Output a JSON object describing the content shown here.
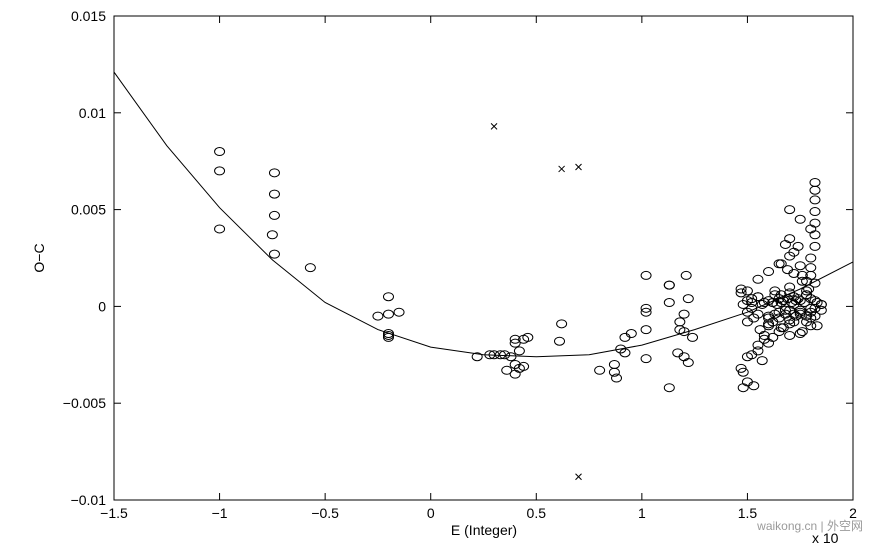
{
  "chart_data": {
    "type": "scatter",
    "title": "",
    "xlabel": "E (Integer)",
    "ylabel": "O−C",
    "x_exponent_label": "x 10",
    "xlim": [
      -1.5,
      2
    ],
    "ylim": [
      -0.01,
      0.015
    ],
    "x_ticks": [
      "−1.5",
      "−1",
      "−0.5",
      "0",
      "0.5",
      "1",
      "1.5",
      "2"
    ],
    "y_ticks": [
      "−0.01",
      "−0.005",
      "0",
      "0.005",
      "0.01",
      "0.015"
    ],
    "grid": false,
    "series": [
      {
        "marker": "circle",
        "x": [
          -1.0,
          -1.0,
          -1.0,
          -0.74,
          -0.74,
          -0.74,
          -0.75,
          -0.74,
          -0.57,
          -0.2,
          -0.2,
          -0.25,
          -0.15,
          -0.2,
          -0.2,
          -0.2,
          0.22,
          0.28,
          0.33,
          0.3,
          0.35,
          0.38,
          0.4,
          0.4,
          0.42,
          0.44,
          0.46,
          0.4,
          0.42,
          0.44,
          0.36,
          0.4,
          0.62,
          0.61,
          0.8,
          0.87,
          0.87,
          0.9,
          0.92,
          0.92,
          0.88,
          0.95,
          1.02,
          1.02,
          1.02,
          1.02,
          1.02,
          1.13,
          1.13,
          1.13,
          1.18,
          1.18,
          1.2,
          1.2,
          1.21,
          1.22,
          1.2,
          1.17,
          1.22,
          1.13,
          1.24,
          1.47,
          1.48,
          1.48,
          1.5,
          1.5,
          1.52,
          1.53,
          1.55,
          1.55,
          1.57,
          1.58,
          1.58,
          1.6,
          1.6,
          1.62,
          1.62,
          1.65,
          1.65,
          1.67,
          1.68,
          1.7,
          1.7,
          1.72,
          1.72,
          1.75,
          1.75,
          1.78,
          1.78,
          1.8,
          1.8,
          1.82,
          1.82,
          1.85,
          1.85,
          1.48,
          1.5,
          1.52,
          1.55,
          1.57,
          1.6,
          1.62,
          1.65,
          1.67,
          1.7,
          1.72,
          1.75,
          1.77,
          1.8,
          1.82,
          1.85,
          1.47,
          1.5,
          1.52,
          1.55,
          1.58,
          1.6,
          1.63,
          1.65,
          1.68,
          1.7,
          1.73,
          1.75,
          1.78,
          1.8,
          1.83,
          1.5,
          1.53,
          1.56,
          1.6,
          1.63,
          1.66,
          1.7,
          1.73,
          1.76,
          1.8,
          1.83,
          1.62,
          1.66,
          1.7,
          1.74,
          1.78,
          1.82,
          1.55,
          1.6,
          1.65,
          1.7,
          1.75,
          1.8,
          1.82,
          1.82,
          1.82,
          1.82,
          1.82,
          1.82,
          1.82,
          1.8,
          1.8,
          1.68,
          1.7,
          1.72,
          1.74,
          1.76,
          1.78,
          1.7,
          1.75,
          1.8,
          1.66,
          1.69,
          1.72,
          1.76,
          1.79,
          1.47,
          1.5,
          1.52,
          1.55,
          1.6,
          1.63,
          1.66,
          1.69,
          1.72,
          1.75,
          1.78,
          1.64,
          1.67,
          1.71
        ],
        "y": [
          0.008,
          0.007,
          0.004,
          0.0069,
          0.0058,
          0.0047,
          0.0037,
          0.0027,
          0.002,
          0.0005,
          -0.0004,
          -0.0005,
          -0.0003,
          -0.0014,
          -0.0015,
          -0.0016,
          -0.0026,
          -0.0025,
          -0.0025,
          -0.0025,
          -0.0025,
          -0.0026,
          -0.0019,
          -0.0017,
          -0.0023,
          -0.0017,
          -0.0016,
          -0.003,
          -0.0032,
          -0.0031,
          -0.0033,
          -0.0035,
          -0.0009,
          -0.0018,
          -0.0033,
          -0.0034,
          -0.003,
          -0.0022,
          -0.0016,
          -0.0024,
          -0.0037,
          -0.0014,
          0.0016,
          -0.0001,
          -0.0003,
          -0.0012,
          -0.0027,
          0.0011,
          0.0002,
          -0.0042,
          -0.0008,
          -0.0012,
          -0.0004,
          -0.0013,
          0.0016,
          0.0004,
          -0.0026,
          -0.0024,
          -0.0029,
          0.0011,
          -0.0016,
          -0.0032,
          -0.0034,
          -0.0042,
          -0.0026,
          -0.0039,
          -0.0025,
          -0.0041,
          -0.0023,
          -0.002,
          -0.0028,
          -0.0015,
          -0.0017,
          -0.001,
          -0.0019,
          -0.0008,
          -0.0016,
          -0.0013,
          -0.0006,
          -0.0011,
          -0.0004,
          -0.0015,
          -0.0009,
          -0.0008,
          -0.0004,
          -0.0014,
          -0.0002,
          -0.0008,
          -0.0005,
          -0.001,
          -0.0003,
          -0.0005,
          -0.0001,
          0.0001,
          -0.0002,
          0.0001,
          -0.0003,
          0.0002,
          -0.0004,
          0.0001,
          -0.0005,
          0.0002,
          -0.0003,
          0.0003,
          -0.0002,
          0.0001,
          -0.0004,
          0.0002,
          -0.0001,
          0.0003,
          0.0001,
          0.0009,
          0.0003,
          -0.0001,
          0.0005,
          0.0002,
          -0.0006,
          0.0008,
          0.0004,
          -0.0002,
          0.0007,
          0.0003,
          -0.0003,
          0.0006,
          0.0004,
          0.0002,
          -0.0008,
          -0.0006,
          -0.0012,
          -0.0009,
          -0.0004,
          -0.0011,
          -0.0007,
          -0.0005,
          -0.0013,
          -0.0006,
          -0.001,
          0.0002,
          0.0006,
          0.001,
          0.0004,
          0.0008,
          0.0012,
          0.0014,
          0.0018,
          0.0022,
          0.0026,
          0.0021,
          0.0025,
          0.0064,
          0.006,
          0.0055,
          0.0049,
          0.0043,
          0.0037,
          0.0031,
          0.0016,
          0.002,
          0.0032,
          0.0035,
          0.0028,
          0.0031,
          0.0016,
          0.0013,
          0.005,
          0.0045,
          0.004,
          0.0022,
          0.0019,
          0.0017,
          0.0013,
          0.0009,
          0.0007,
          0.0008,
          0.0004,
          0.0005,
          0.0003,
          0.0006,
          0.0002,
          0.0004,
          0.0005,
          0.0003,
          0.0006,
          0.0001,
          0.0003,
          0.0002
        ]
      },
      {
        "marker": "x",
        "x": [
          0.3,
          0.62,
          0.7,
          0.7
        ],
        "y": [
          0.0093,
          0.0071,
          0.0072,
          -0.0088
        ]
      },
      {
        "marker": "line",
        "x": [
          -1.5,
          -1.25,
          -1.0,
          -0.75,
          -0.5,
          -0.25,
          0.0,
          0.25,
          0.5,
          0.75,
          1.0,
          1.25,
          1.5,
          1.75,
          2.0
        ],
        "y": [
          0.0121,
          0.0083,
          0.0051,
          0.0024,
          0.0002,
          -0.0012,
          -0.0021,
          -0.0025,
          -0.0026,
          -0.0025,
          -0.002,
          -0.0012,
          -0.0003,
          0.0009,
          0.0023
        ]
      }
    ]
  },
  "watermark": "waikong.cn | 外空网"
}
